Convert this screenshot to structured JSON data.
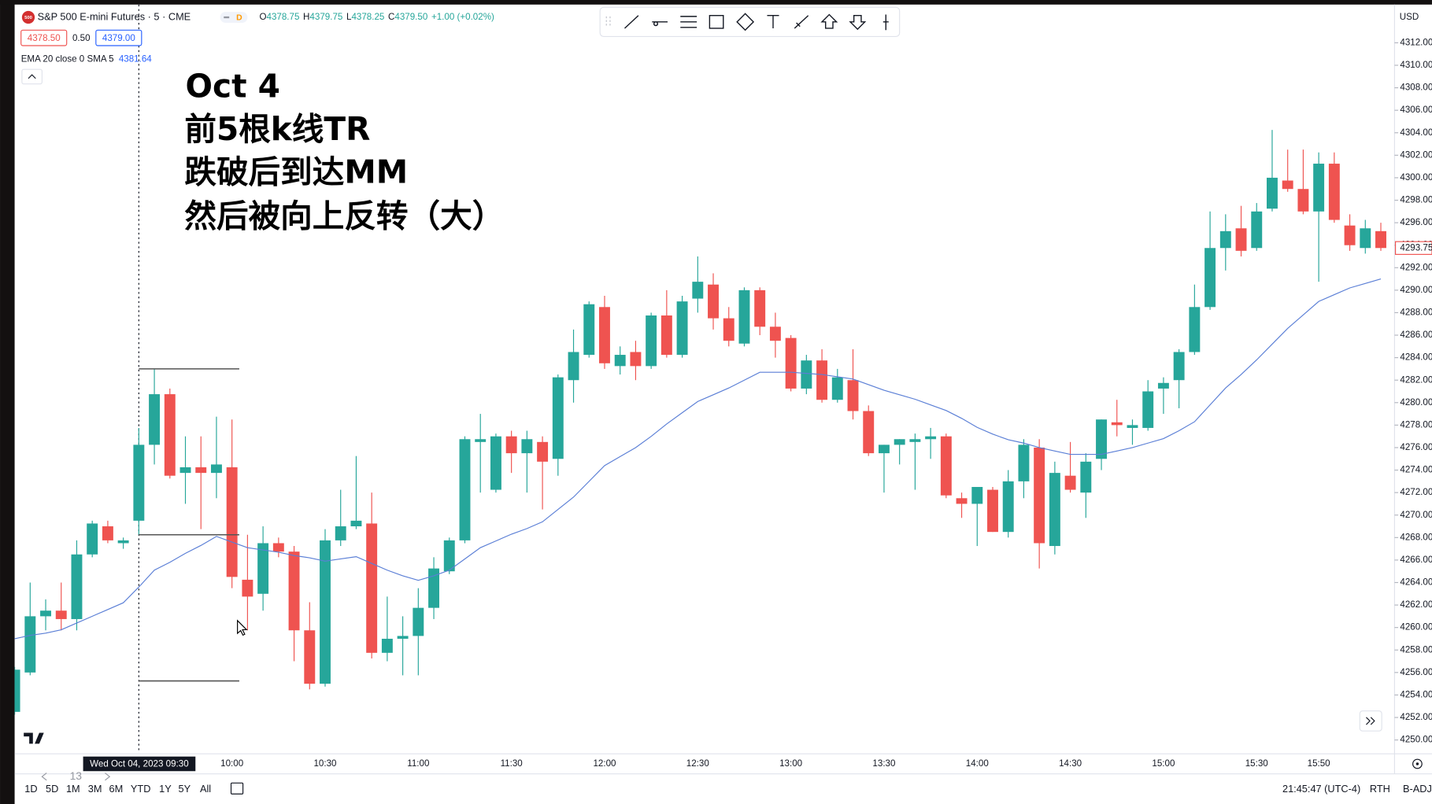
{
  "chart_data": {
    "type": "candlestick",
    "annotations": [
      "Oct 4",
      "前5根k线TR",
      "跌破后到达MM",
      "然后被向上反转（大）"
    ],
    "categories": [
      null,
      null,
      null,
      null,
      null,
      null,
      null,
      null,
      null,
      null,
      null,
      null,
      null,
      null,
      "10:00",
      null,
      null,
      null,
      null,
      null,
      "10:30",
      null,
      null,
      null,
      null,
      null,
      "11:00",
      null,
      null,
      null,
      null,
      null,
      "11:30",
      null,
      null,
      null,
      null,
      null,
      "12:00",
      null,
      null,
      null,
      null,
      null,
      "12:30",
      null,
      null,
      null,
      null,
      null,
      "13:00",
      null,
      null,
      null,
      null,
      null,
      "13:30",
      null,
      null,
      null,
      null,
      null,
      "14:00",
      null,
      null,
      null,
      null,
      null,
      "14:30",
      null,
      null,
      null,
      null,
      null,
      "15:00",
      null,
      null,
      null,
      null,
      null,
      "15:30",
      null,
      null,
      null,
      "15:50",
      null,
      null,
      null,
      null
    ],
    "open": [
      4252.5,
      4256.0,
      4261.0,
      4261.5,
      4260.75,
      4266.5,
      4269.0,
      4267.5,
      4269.5,
      4276.25,
      4280.75,
      4273.75,
      4274.25,
      4273.75,
      4274.25,
      4264.25,
      4263.0,
      4267.5,
      4266.75,
      4259.75,
      4255.0,
      4267.75,
      4269.0,
      4269.25,
      4257.75,
      4259.0,
      4259.25,
      4261.75,
      4265.0,
      4267.75,
      4276.5,
      4272.25,
      4277.0,
      4275.5,
      4276.5,
      4275.0,
      4282.0,
      4284.25,
      4288.5,
      4283.25,
      4284.5,
      4283.25,
      4287.75,
      4284.25,
      4289.25,
      4290.5,
      4287.5,
      4285.25,
      4290.0,
      4286.75,
      4285.75,
      4281.25,
      4283.75,
      4280.25,
      4282.0,
      4279.25,
      4275.5,
      4276.25,
      4276.5,
      4276.75,
      4277.0,
      4271.5,
      4271.0,
      4272.25,
      4268.5,
      4273.0,
      4276.0,
      4267.25,
      4273.5,
      4272.0,
      4275.0,
      4278.25,
      4277.75,
      4277.75,
      4281.25,
      4282.0,
      4284.5,
      4288.5,
      4293.75,
      4295.5,
      4293.75,
      4297.25,
      4299.75,
      4299.0,
      4297.0,
      4301.25,
      4295.75,
      4293.75,
      4295.25
    ],
    "high": [
      4256.5,
      4264.0,
      4262.5,
      4264.0,
      4267.75,
      4269.5,
      4269.5,
      4268.0,
      4277.75,
      4283.0,
      4281.25,
      4277.0,
      4277.0,
      4278.75,
      4278.5,
      4268.25,
      4269.0,
      4268.0,
      4267.25,
      4262.25,
      4268.75,
      4272.25,
      4275.25,
      4272.0,
      4262.75,
      4261.0,
      4263.5,
      4266.25,
      4268.0,
      4277.0,
      4279.0,
      4277.25,
      4277.5,
      4277.5,
      4277.0,
      4282.5,
      4286.5,
      4289.0,
      4289.5,
      4285.0,
      4285.5,
      4288.0,
      4290.0,
      4289.5,
      4293.0,
      4291.5,
      4288.5,
      4290.25,
      4290.25,
      4288.0,
      4286.0,
      4284.25,
      4284.75,
      4283.0,
      4284.75,
      4279.75,
      4276.25,
      4276.75,
      4277.25,
      4277.75,
      4277.25,
      4272.0,
      4272.5,
      4272.5,
      4274.0,
      4276.75,
      4276.75,
      4274.75,
      4276.5,
      4275.5,
      4278.5,
      4280.25,
      4278.5,
      4282.0,
      4282.25,
      4284.75,
      4290.5,
      4297.0,
      4296.75,
      4297.5,
      4297.75,
      4304.25,
      4302.5,
      4302.5,
      4302.25,
      4302.25,
      4296.75,
      4296.25,
      4296.0
    ],
    "low": [
      4252.25,
      4255.75,
      4259.75,
      4259.75,
      4259.75,
      4266.25,
      4267.5,
      4267.0,
      4268.25,
      4274.5,
      4273.25,
      4271.0,
      4268.75,
      4271.5,
      4263.5,
      4259.75,
      4261.5,
      4266.25,
      4257.0,
      4254.5,
      4254.75,
      4267.25,
      4268.75,
      4257.25,
      4257.0,
      4255.75,
      4255.75,
      4260.75,
      4264.75,
      4267.5,
      4272.0,
      4272.0,
      4273.75,
      4272.0,
      4270.5,
      4273.5,
      4280.0,
      4284.0,
      4283.0,
      4282.5,
      4282.0,
      4283.0,
      4284.0,
      4284.0,
      4288.0,
      4286.5,
      4285.0,
      4285.0,
      4286.0,
      4284.0,
      4281.0,
      4280.75,
      4280.0,
      4280.0,
      4278.5,
      4275.25,
      4272.0,
      4274.5,
      4272.25,
      4275.0,
      4271.5,
      4269.75,
      4267.25,
      4268.5,
      4268.0,
      4271.5,
      4265.25,
      4266.5,
      4272.0,
      4269.75,
      4274.0,
      4277.0,
      4276.25,
      4277.5,
      4279.0,
      4279.5,
      4284.25,
      4288.25,
      4291.75,
      4293.0,
      4293.5,
      4297.0,
      4298.75,
      4296.75,
      4290.75,
      4296.0,
      4293.5,
      4293.25,
      4293.5
    ],
    "close": [
      4256.25,
      4261.0,
      4261.5,
      4260.75,
      4266.5,
      4269.25,
      4267.75,
      4267.75,
      4276.25,
      4280.75,
      4273.5,
      4274.25,
      4273.75,
      4274.5,
      4264.5,
      4262.75,
      4267.5,
      4266.75,
      4259.75,
      4255.0,
      4267.75,
      4269.0,
      4269.5,
      4257.75,
      4259.0,
      4259.25,
      4261.75,
      4265.25,
      4267.75,
      4276.75,
      4276.75,
      4277.0,
      4275.5,
      4276.75,
      4274.75,
      4282.25,
      4284.5,
      4288.75,
      4283.5,
      4284.25,
      4283.25,
      4287.75,
      4284.25,
      4289.0,
      4290.75,
      4287.5,
      4285.5,
      4290.0,
      4286.75,
      4285.5,
      4281.25,
      4283.75,
      4280.25,
      4282.25,
      4279.25,
      4275.5,
      4276.25,
      4276.75,
      4276.75,
      4277.0,
      4271.75,
      4271.0,
      4272.5,
      4268.5,
      4273.0,
      4276.25,
      4267.5,
      4273.75,
      4272.25,
      4274.75,
      4278.5,
      4278.0,
      4278.0,
      4281.0,
      4281.75,
      4284.5,
      4288.5,
      4293.75,
      4295.25,
      4293.5,
      4297.0,
      4300.0,
      4299.0,
      4297.0,
      4301.25,
      4296.25,
      4294.0,
      4295.5,
      4293.75
    ],
    "up_color": "#26a69a",
    "down_color": "#ef5350",
    "ema": {
      "name": "EMA 20 close 0 SMA 5",
      "readout": "4381.64",
      "color": "#5b7fd6",
      "values": [
        4259.0,
        4259.3,
        4259.5,
        4259.8,
        4260.4,
        4261.0,
        4261.6,
        4262.2,
        4263.6,
        4265.1,
        4265.8,
        4266.6,
        4267.3,
        4268.1,
        4267.6,
        4267.1,
        4266.9,
        4266.7,
        4266.4,
        4266.2,
        4265.9,
        4266.1,
        4266.3,
        4265.7,
        4265.1,
        4264.6,
        4264.2,
        4264.6,
        4265.1,
        4266.1,
        4267.1,
        4267.7,
        4268.3,
        4268.8,
        4269.4,
        4270.5,
        4271.6,
        4273.0,
        4274.4,
        4275.2,
        4276.0,
        4277.0,
        4278.1,
        4279.1,
        4280.1,
        4280.7,
        4281.3,
        4282.0,
        4282.7,
        4282.7,
        4282.7,
        4282.6,
        4282.5,
        4282.3,
        4282.1,
        4281.6,
        4281.1,
        4280.7,
        4280.3,
        4279.8,
        4279.3,
        4278.6,
        4277.8,
        4277.2,
        4276.7,
        4276.4,
        4276.0,
        4275.7,
        4275.4,
        4275.4,
        4275.4,
        4275.7,
        4276.0,
        4276.4,
        4276.8,
        4277.5,
        4278.3,
        4279.8,
        4281.3,
        4282.5,
        4283.8,
        4285.2,
        4286.6,
        4287.8,
        4289.0,
        4289.6,
        4290.2,
        4290.6,
        4291.0
      ]
    },
    "levels": [
      4283.0,
      4268.25,
      4255.25
    ],
    "last_price": 4293.75,
    "crosshair_label": "Wed Oct 04, 2023  09:30",
    "ylim": [
      4248.85,
      4315.4
    ],
    "yticks": [
      {
        "value": 4250,
        "label": "4250.00"
      },
      {
        "value": 4252,
        "label": "4252.00"
      },
      {
        "value": 4254,
        "label": "4254.00"
      },
      {
        "value": 4256,
        "label": "4256.00"
      },
      {
        "value": 4258,
        "label": "4258.00"
      },
      {
        "value": 4260,
        "label": "4260.00"
      },
      {
        "value": 4262,
        "label": "4262.00"
      },
      {
        "value": 4264,
        "label": "4264.00"
      },
      {
        "value": 4266,
        "label": "4266.00"
      },
      {
        "value": 4268,
        "label": "4268.00"
      },
      {
        "value": 4270,
        "label": "4270.00"
      },
      {
        "value": 4272,
        "label": "4272.00"
      },
      {
        "value": 4274,
        "label": "4274.00"
      },
      {
        "value": 4276,
        "label": "4276.00"
      },
      {
        "value": 4278,
        "label": "4278.00"
      },
      {
        "value": 4280,
        "label": "4280.00"
      },
      {
        "value": 4282,
        "label": "4282.00"
      },
      {
        "value": 4284,
        "label": "4284.00"
      },
      {
        "value": 4286,
        "label": "4286.00"
      },
      {
        "value": 4288,
        "label": "4288.00"
      },
      {
        "value": 4290,
        "label": "4290.00"
      },
      {
        "value": 4292,
        "label": "4292.00"
      },
      {
        "value": 4294,
        "label": "4294.00"
      },
      {
        "value": 4296,
        "label": "4296.00"
      },
      {
        "value": 4298,
        "label": "4298.00"
      },
      {
        "value": 4300,
        "label": "4300.00"
      },
      {
        "value": 4302,
        "label": "4302.00"
      },
      {
        "value": 4304,
        "label": "4304.00"
      },
      {
        "value": 4306,
        "label": "4306.00"
      },
      {
        "value": 4308,
        "label": "4308.00"
      },
      {
        "value": 4310,
        "label": "4310.00"
      },
      {
        "value": 4312,
        "label": "4312.00"
      }
    ],
    "grid": false
  },
  "ui": {
    "logo": "500",
    "symbol": "S&P 500 E-mini Futures · 5 · CME",
    "badge": "D",
    "ohlc": [
      {
        "key": "O",
        "value": "4378.75"
      },
      {
        "key": "H",
        "value": "4379.75"
      },
      {
        "key": "L",
        "value": "4378.25"
      },
      {
        "key": "C",
        "value": "4379.50"
      }
    ],
    "change": "+1.00 (+0.02%)",
    "bid": "4378.50",
    "spread": "0.50",
    "ask": "4379.00",
    "currency": "USD",
    "zoom": "13",
    "ranges": [
      "1D",
      "5D",
      "1M",
      "3M",
      "6M",
      "YTD",
      "1Y",
      "5Y",
      "All"
    ],
    "clock": "21:45:47 (UTC-4)",
    "session": "RTH",
    "adjust": "B-ADJ"
  }
}
